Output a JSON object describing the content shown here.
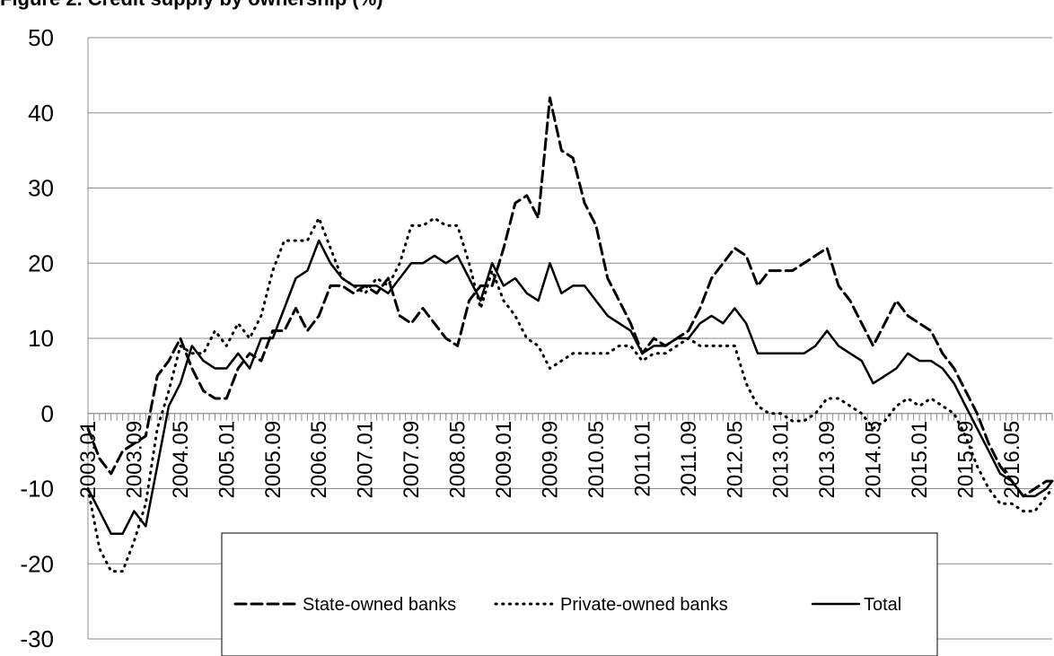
{
  "chart_data": {
    "type": "line",
    "title": "Figure 2. Credit supply by ownership (%)",
    "xlabel": "",
    "ylabel": "",
    "ylim": [
      -30,
      50
    ],
    "yticks": [
      -30,
      -20,
      -10,
      0,
      10,
      20,
      30,
      40,
      50
    ],
    "grid": true,
    "legend_position": "bottom-center",
    "x_start": "2003.01",
    "x_end": "2016.12",
    "xtick_labels": [
      "2003.01",
      "2003.09",
      "2004.05",
      "2005.01",
      "2005.09",
      "2006.05",
      "2007.01",
      "2007.09",
      "2008.05",
      "2009.01",
      "2009.09",
      "2010.05",
      "2011.01",
      "2011.09",
      "2012.05",
      "2013.01",
      "2013.09",
      "2014.05",
      "2015.01",
      "2015.09",
      "2016.05"
    ],
    "series": [
      {
        "name": "State-owned banks",
        "style": "dashed",
        "color": "#000000",
        "points": [
          [
            "2003.01",
            -2
          ],
          [
            "2003.03",
            -6
          ],
          [
            "2003.05",
            -8
          ],
          [
            "2003.07",
            -5
          ],
          [
            "2003.09",
            -4
          ],
          [
            "2003.11",
            -3
          ],
          [
            "2004.01",
            5
          ],
          [
            "2004.03",
            7
          ],
          [
            "2004.05",
            10
          ],
          [
            "2004.07",
            6
          ],
          [
            "2004.09",
            3
          ],
          [
            "2004.11",
            2
          ],
          [
            "2005.01",
            2
          ],
          [
            "2005.03",
            6
          ],
          [
            "2005.05",
            8
          ],
          [
            "2005.07",
            7
          ],
          [
            "2005.09",
            11
          ],
          [
            "2005.11",
            11
          ],
          [
            "2006.01",
            14
          ],
          [
            "2006.03",
            11
          ],
          [
            "2006.05",
            13
          ],
          [
            "2006.07",
            17
          ],
          [
            "2006.09",
            17
          ],
          [
            "2006.11",
            16
          ],
          [
            "2007.01",
            17
          ],
          [
            "2007.03",
            16
          ],
          [
            "2007.05",
            18
          ],
          [
            "2007.07",
            13
          ],
          [
            "2007.09",
            12
          ],
          [
            "2007.11",
            14
          ],
          [
            "2008.01",
            12
          ],
          [
            "2008.03",
            10
          ],
          [
            "2008.05",
            9
          ],
          [
            "2008.07",
            15
          ],
          [
            "2008.09",
            17
          ],
          [
            "2008.11",
            17
          ],
          [
            "2009.01",
            22
          ],
          [
            "2009.03",
            28
          ],
          [
            "2009.05",
            29
          ],
          [
            "2009.07",
            26
          ],
          [
            "2009.09",
            42
          ],
          [
            "2009.11",
            35
          ],
          [
            "2010.01",
            34
          ],
          [
            "2010.03",
            28
          ],
          [
            "2010.05",
            25
          ],
          [
            "2010.07",
            18
          ],
          [
            "2010.09",
            15
          ],
          [
            "2010.11",
            12
          ],
          [
            "2011.01",
            8
          ],
          [
            "2011.03",
            10
          ],
          [
            "2011.05",
            9
          ],
          [
            "2011.07",
            10
          ],
          [
            "2011.09",
            11
          ],
          [
            "2011.11",
            14
          ],
          [
            "2012.01",
            18
          ],
          [
            "2012.03",
            20
          ],
          [
            "2012.05",
            22
          ],
          [
            "2012.07",
            21
          ],
          [
            "2012.09",
            17
          ],
          [
            "2012.11",
            19
          ],
          [
            "2013.01",
            19
          ],
          [
            "2013.03",
            19
          ],
          [
            "2013.05",
            20
          ],
          [
            "2013.07",
            21
          ],
          [
            "2013.09",
            22
          ],
          [
            "2013.11",
            17
          ],
          [
            "2014.01",
            15
          ],
          [
            "2014.03",
            12
          ],
          [
            "2014.05",
            9
          ],
          [
            "2014.07",
            12
          ],
          [
            "2014.09",
            15
          ],
          [
            "2014.11",
            13
          ],
          [
            "2015.01",
            12
          ],
          [
            "2015.03",
            11
          ],
          [
            "2015.05",
            8
          ],
          [
            "2015.07",
            6
          ],
          [
            "2015.09",
            3
          ],
          [
            "2015.11",
            0
          ],
          [
            "2016.01",
            -4
          ],
          [
            "2016.03",
            -7
          ],
          [
            "2016.05",
            -9
          ],
          [
            "2016.07",
            -11
          ],
          [
            "2016.09",
            -10
          ],
          [
            "2016.11",
            -9
          ],
          [
            "2016.12",
            -9
          ]
        ]
      },
      {
        "name": "Private-owned banks",
        "style": "dotted",
        "color": "#000000",
        "points": [
          [
            "2003.01",
            -10
          ],
          [
            "2003.03",
            -18
          ],
          [
            "2003.05",
            -21
          ],
          [
            "2003.07",
            -21
          ],
          [
            "2003.09",
            -17
          ],
          [
            "2003.11",
            -12
          ],
          [
            "2004.01",
            -2
          ],
          [
            "2004.03",
            3
          ],
          [
            "2004.05",
            9
          ],
          [
            "2004.07",
            8
          ],
          [
            "2004.09",
            8
          ],
          [
            "2004.11",
            11
          ],
          [
            "2005.01",
            9
          ],
          [
            "2005.03",
            12
          ],
          [
            "2005.05",
            10
          ],
          [
            "2005.07",
            13
          ],
          [
            "2005.09",
            19
          ],
          [
            "2005.11",
            23
          ],
          [
            "2006.01",
            23
          ],
          [
            "2006.03",
            23
          ],
          [
            "2006.05",
            26
          ],
          [
            "2006.07",
            22
          ],
          [
            "2006.09",
            18
          ],
          [
            "2006.11",
            17
          ],
          [
            "2007.01",
            16
          ],
          [
            "2007.03",
            18
          ],
          [
            "2007.05",
            17
          ],
          [
            "2007.07",
            20
          ],
          [
            "2007.09",
            25
          ],
          [
            "2007.11",
            25
          ],
          [
            "2008.01",
            26
          ],
          [
            "2008.03",
            25
          ],
          [
            "2008.05",
            25
          ],
          [
            "2008.07",
            20
          ],
          [
            "2008.09",
            14
          ],
          [
            "2008.11",
            19
          ],
          [
            "2009.01",
            15
          ],
          [
            "2009.03",
            13
          ],
          [
            "2009.05",
            10
          ],
          [
            "2009.07",
            9
          ],
          [
            "2009.09",
            6
          ],
          [
            "2009.11",
            7
          ],
          [
            "2010.01",
            8
          ],
          [
            "2010.03",
            8
          ],
          [
            "2010.05",
            8
          ],
          [
            "2010.07",
            8
          ],
          [
            "2010.09",
            9
          ],
          [
            "2010.11",
            9
          ],
          [
            "2011.01",
            7
          ],
          [
            "2011.03",
            8
          ],
          [
            "2011.05",
            8
          ],
          [
            "2011.07",
            9
          ],
          [
            "2011.09",
            10
          ],
          [
            "2011.11",
            9
          ],
          [
            "2012.01",
            9
          ],
          [
            "2012.03",
            9
          ],
          [
            "2012.05",
            9
          ],
          [
            "2012.07",
            4
          ],
          [
            "2012.09",
            1
          ],
          [
            "2012.11",
            0
          ],
          [
            "2013.01",
            0
          ],
          [
            "2013.03",
            -1
          ],
          [
            "2013.05",
            -1
          ],
          [
            "2013.07",
            0
          ],
          [
            "2013.09",
            2
          ],
          [
            "2013.11",
            2
          ],
          [
            "2014.01",
            1
          ],
          [
            "2014.03",
            0
          ],
          [
            "2014.05",
            -2
          ],
          [
            "2014.07",
            -1
          ],
          [
            "2014.09",
            1
          ],
          [
            "2014.11",
            2
          ],
          [
            "2015.01",
            1
          ],
          [
            "2015.03",
            2
          ],
          [
            "2015.05",
            1
          ],
          [
            "2015.07",
            0
          ],
          [
            "2015.09",
            -3
          ],
          [
            "2015.11",
            -7
          ],
          [
            "2016.01",
            -10
          ],
          [
            "2016.03",
            -12
          ],
          [
            "2016.05",
            -12
          ],
          [
            "2016.07",
            -13
          ],
          [
            "2016.09",
            -13
          ],
          [
            "2016.11",
            -11
          ],
          [
            "2016.12",
            -10
          ]
        ]
      },
      {
        "name": "Total",
        "style": "solid",
        "color": "#000000",
        "points": [
          [
            "2003.01",
            -10
          ],
          [
            "2003.03",
            -13
          ],
          [
            "2003.05",
            -16
          ],
          [
            "2003.07",
            -16
          ],
          [
            "2003.09",
            -13
          ],
          [
            "2003.11",
            -15
          ],
          [
            "2004.01",
            -7
          ],
          [
            "2004.03",
            1
          ],
          [
            "2004.05",
            4
          ],
          [
            "2004.07",
            9
          ],
          [
            "2004.09",
            7
          ],
          [
            "2004.11",
            6
          ],
          [
            "2005.01",
            6
          ],
          [
            "2005.03",
            8
          ],
          [
            "2005.05",
            6
          ],
          [
            "2005.07",
            10
          ],
          [
            "2005.09",
            10
          ],
          [
            "2005.11",
            14
          ],
          [
            "2006.01",
            18
          ],
          [
            "2006.03",
            19
          ],
          [
            "2006.05",
            23
          ],
          [
            "2006.07",
            20
          ],
          [
            "2006.09",
            18
          ],
          [
            "2006.11",
            17
          ],
          [
            "2007.01",
            17
          ],
          [
            "2007.03",
            17
          ],
          [
            "2007.05",
            16
          ],
          [
            "2007.07",
            18
          ],
          [
            "2007.09",
            20
          ],
          [
            "2007.11",
            20
          ],
          [
            "2008.01",
            21
          ],
          [
            "2008.03",
            20
          ],
          [
            "2008.05",
            21
          ],
          [
            "2008.07",
            18
          ],
          [
            "2008.09",
            15
          ],
          [
            "2008.11",
            20
          ],
          [
            "2009.01",
            17
          ],
          [
            "2009.03",
            18
          ],
          [
            "2009.05",
            16
          ],
          [
            "2009.07",
            15
          ],
          [
            "2009.09",
            20
          ],
          [
            "2009.11",
            16
          ],
          [
            "2010.01",
            17
          ],
          [
            "2010.03",
            17
          ],
          [
            "2010.05",
            15
          ],
          [
            "2010.07",
            13
          ],
          [
            "2010.09",
            12
          ],
          [
            "2010.11",
            11
          ],
          [
            "2011.01",
            8
          ],
          [
            "2011.03",
            9
          ],
          [
            "2011.05",
            9
          ],
          [
            "2011.07",
            10
          ],
          [
            "2011.09",
            10
          ],
          [
            "2011.11",
            12
          ],
          [
            "2012.01",
            13
          ],
          [
            "2012.03",
            12
          ],
          [
            "2012.05",
            14
          ],
          [
            "2012.07",
            12
          ],
          [
            "2012.09",
            8
          ],
          [
            "2012.11",
            8
          ],
          [
            "2013.01",
            8
          ],
          [
            "2013.03",
            8
          ],
          [
            "2013.05",
            8
          ],
          [
            "2013.07",
            9
          ],
          [
            "2013.09",
            11
          ],
          [
            "2013.11",
            9
          ],
          [
            "2014.01",
            8
          ],
          [
            "2014.03",
            7
          ],
          [
            "2014.05",
            4
          ],
          [
            "2014.07",
            5
          ],
          [
            "2014.09",
            6
          ],
          [
            "2014.11",
            8
          ],
          [
            "2015.01",
            7
          ],
          [
            "2015.03",
            7
          ],
          [
            "2015.05",
            6
          ],
          [
            "2015.07",
            4
          ],
          [
            "2015.09",
            1
          ],
          [
            "2015.11",
            -2
          ],
          [
            "2016.01",
            -5
          ],
          [
            "2016.03",
            -8
          ],
          [
            "2016.05",
            -9
          ],
          [
            "2016.07",
            -11
          ],
          [
            "2016.09",
            -11
          ],
          [
            "2016.11",
            -10
          ],
          [
            "2016.12",
            -9
          ]
        ]
      }
    ]
  }
}
